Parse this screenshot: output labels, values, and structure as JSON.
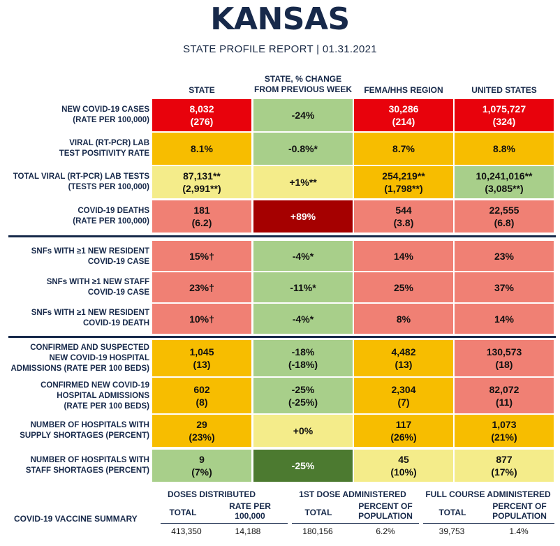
{
  "header": {
    "title": "KANSAS",
    "subtitle": "STATE PROFILE REPORT | 01.31.2021"
  },
  "columns": {
    "state": "STATE",
    "change_line1": "STATE, % CHANGE",
    "change_line2": "FROM PREVIOUS WEEK",
    "region": "FEMA/HHS REGION",
    "us": "UNITED STATES"
  },
  "colors": {
    "red": "#e8020c",
    "dark_red": "#a50000",
    "salmon": "#f08074",
    "orange": "#f7bd00",
    "yellow": "#f4ec8a",
    "light_green": "#a8cf8a",
    "dark_green": "#4c7a30",
    "navy": "#17294a"
  },
  "rows": [
    {
      "label1": "NEW COVID-19 CASES",
      "label2": "(RATE PER 100,000)",
      "state1": "8,032",
      "state2": "(276)",
      "change1": "-24%",
      "change2": "",
      "region1": "30,286",
      "region2": "(214)",
      "us1": "1,075,727",
      "us2": "(324)"
    },
    {
      "label1": "VIRAL (RT-PCR) LAB",
      "label2": "TEST POSITIVITY RATE",
      "state1": "8.1%",
      "state2": "",
      "change1": "-0.8%*",
      "change2": "",
      "region1": "8.7%",
      "region2": "",
      "us1": "8.8%",
      "us2": ""
    },
    {
      "label1": "TOTAL VIRAL (RT-PCR) LAB TESTS",
      "label2": "(TESTS PER 100,000)",
      "state1": "87,131**",
      "state2": "(2,991**)",
      "change1": "+1%**",
      "change2": "",
      "region1": "254,219**",
      "region2": "(1,798**)",
      "us1": "10,241,016**",
      "us2": "(3,085**)"
    },
    {
      "label1": "COVID-19 DEATHS",
      "label2": "(RATE PER 100,000)",
      "state1": "181",
      "state2": "(6.2)",
      "change1": "+89%",
      "change2": "",
      "region1": "544",
      "region2": "(3.8)",
      "us1": "22,555",
      "us2": "(6.8)"
    },
    {
      "label1": "SNFs WITH ≥1 NEW RESIDENT",
      "label2": "COVID-19 CASE",
      "state1": "15%†",
      "state2": "",
      "change1": "-4%*",
      "change2": "",
      "region1": "14%",
      "region2": "",
      "us1": "23%",
      "us2": ""
    },
    {
      "label1": "SNFs WITH ≥1 NEW STAFF",
      "label2": "COVID-19 CASE",
      "state1": "23%†",
      "state2": "",
      "change1": "-11%*",
      "change2": "",
      "region1": "25%",
      "region2": "",
      "us1": "37%",
      "us2": ""
    },
    {
      "label1": "SNFs WITH ≥1 NEW RESIDENT",
      "label2": "COVID-19 DEATH",
      "state1": "10%†",
      "state2": "",
      "change1": "-4%*",
      "change2": "",
      "region1": "8%",
      "region2": "",
      "us1": "14%",
      "us2": ""
    },
    {
      "label1": "CONFIRMED AND SUSPECTED",
      "label2": "NEW COVID-19 HOSPITAL",
      "label3": "ADMISSIONS (RATE PER 100 BEDS)",
      "state1": "1,045",
      "state2": "(13)",
      "change1": "-18%",
      "change2": "(-18%)",
      "region1": "4,482",
      "region2": "(13)",
      "us1": "130,573",
      "us2": "(18)"
    },
    {
      "label1": "CONFIRMED NEW COVID-19",
      "label2": "HOSPITAL ADMISSIONS",
      "label3": "(RATE PER 100 BEDS)",
      "state1": "602",
      "state2": "(8)",
      "change1": "-25%",
      "change2": "(-25%)",
      "region1": "2,304",
      "region2": "(7)",
      "us1": "82,072",
      "us2": "(11)"
    },
    {
      "label1": "NUMBER OF HOSPITALS WITH",
      "label2": "SUPPLY SHORTAGES (PERCENT)",
      "state1": "29",
      "state2": "(23%)",
      "change1": "+0%",
      "change2": "",
      "region1": "117",
      "region2": "(26%)",
      "us1": "1,073",
      "us2": "(21%)"
    },
    {
      "label1": "NUMBER OF HOSPITALS WITH",
      "label2": "STAFF SHORTAGES (PERCENT)",
      "state1": "9",
      "state2": "(7%)",
      "change1": "-25%",
      "change2": "",
      "region1": "45",
      "region2": "(10%)",
      "us1": "877",
      "us2": "(17%)"
    }
  ],
  "vaccine": {
    "label": "COVID-19 VACCINE SUMMARY",
    "groups": [
      "DOSES DISTRIBUTED",
      "1ST DOSE ADMINISTERED",
      "FULL COURSE ADMINISTERED"
    ],
    "total": "TOTAL",
    "rate1": "RATE PER",
    "rate2": "100,000",
    "pct1": "PERCENT OF",
    "pct2": "POPULATION",
    "dist_total": "413,350",
    "dist_rate": "14,188",
    "first_total": "180,156",
    "first_pct": "6.2%",
    "full_total": "39,753",
    "full_pct": "1.4%"
  }
}
